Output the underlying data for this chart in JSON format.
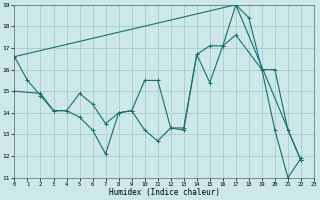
{
  "xlabel": "Humidex (Indice chaleur)",
  "bg_color": "#cce8e8",
  "grid_color": "#a8cccc",
  "line_color": "#1a6e6e",
  "xlim": [
    0,
    23
  ],
  "ylim": [
    11,
    19
  ],
  "xticks": [
    0,
    1,
    2,
    3,
    4,
    5,
    6,
    7,
    8,
    9,
    10,
    11,
    12,
    13,
    14,
    15,
    16,
    17,
    18,
    19,
    20,
    21,
    22,
    23
  ],
  "yticks": [
    11,
    12,
    13,
    14,
    15,
    16,
    17,
    18,
    19
  ],
  "line1_x": [
    0,
    1,
    2,
    3,
    4,
    5,
    6,
    7,
    8,
    9,
    10,
    11,
    12,
    13,
    14,
    15,
    16,
    17,
    18,
    19,
    20,
    21,
    22
  ],
  "line1_y": [
    16.6,
    15.5,
    14.8,
    14.1,
    14.1,
    13.8,
    13.2,
    12.1,
    14.0,
    14.1,
    13.2,
    12.7,
    13.3,
    13.2,
    16.7,
    15.4,
    17.1,
    19.0,
    18.4,
    16.0,
    13.2,
    11.0,
    11.9
  ],
  "line2_x": [
    0,
    2,
    3,
    4,
    5,
    6,
    7,
    8,
    9,
    10,
    11,
    12,
    13,
    14,
    15,
    16,
    17,
    19,
    20,
    21,
    22
  ],
  "line2_y": [
    15.0,
    14.9,
    14.1,
    14.1,
    14.9,
    14.4,
    13.5,
    14.0,
    14.1,
    15.5,
    15.5,
    13.3,
    13.3,
    16.7,
    17.1,
    17.1,
    17.6,
    16.0,
    16.0,
    13.2,
    11.8
  ],
  "line3_x": [
    0,
    17,
    22
  ],
  "line3_y": [
    16.6,
    19.0,
    11.8
  ]
}
